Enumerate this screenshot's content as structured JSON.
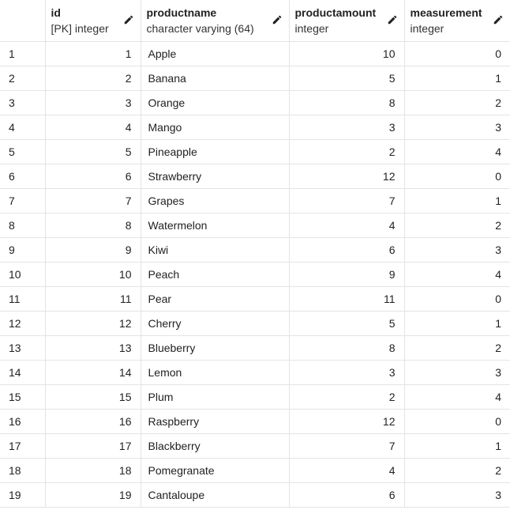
{
  "columns": [
    {
      "name": "id",
      "type": "[PK] integer",
      "icon": "pencil-icon"
    },
    {
      "name": "productname",
      "type": "character varying (64)",
      "icon": "pencil-icon"
    },
    {
      "name": "productamount",
      "type": "integer",
      "icon": "pencil-icon"
    },
    {
      "name": "measurement",
      "type": "integer",
      "icon": "pencil-icon"
    }
  ],
  "rows": [
    {
      "rownum": "1",
      "id": "1",
      "productname": "Apple",
      "productamount": "10",
      "measurement": "0"
    },
    {
      "rownum": "2",
      "id": "2",
      "productname": "Banana",
      "productamount": "5",
      "measurement": "1"
    },
    {
      "rownum": "3",
      "id": "3",
      "productname": "Orange",
      "productamount": "8",
      "measurement": "2"
    },
    {
      "rownum": "4",
      "id": "4",
      "productname": "Mango",
      "productamount": "3",
      "measurement": "3"
    },
    {
      "rownum": "5",
      "id": "5",
      "productname": "Pineapple",
      "productamount": "2",
      "measurement": "4"
    },
    {
      "rownum": "6",
      "id": "6",
      "productname": "Strawberry",
      "productamount": "12",
      "measurement": "0"
    },
    {
      "rownum": "7",
      "id": "7",
      "productname": "Grapes",
      "productamount": "7",
      "measurement": "1"
    },
    {
      "rownum": "8",
      "id": "8",
      "productname": "Watermelon",
      "productamount": "4",
      "measurement": "2"
    },
    {
      "rownum": "9",
      "id": "9",
      "productname": "Kiwi",
      "productamount": "6",
      "measurement": "3"
    },
    {
      "rownum": "10",
      "id": "10",
      "productname": "Peach",
      "productamount": "9",
      "measurement": "4"
    },
    {
      "rownum": "11",
      "id": "11",
      "productname": "Pear",
      "productamount": "11",
      "measurement": "0"
    },
    {
      "rownum": "12",
      "id": "12",
      "productname": "Cherry",
      "productamount": "5",
      "measurement": "1"
    },
    {
      "rownum": "13",
      "id": "13",
      "productname": "Blueberry",
      "productamount": "8",
      "measurement": "2"
    },
    {
      "rownum": "14",
      "id": "14",
      "productname": "Lemon",
      "productamount": "3",
      "measurement": "3"
    },
    {
      "rownum": "15",
      "id": "15",
      "productname": "Plum",
      "productamount": "2",
      "measurement": "4"
    },
    {
      "rownum": "16",
      "id": "16",
      "productname": "Raspberry",
      "productamount": "12",
      "measurement": "0"
    },
    {
      "rownum": "17",
      "id": "17",
      "productname": "Blackberry",
      "productamount": "7",
      "measurement": "1"
    },
    {
      "rownum": "18",
      "id": "18",
      "productname": "Pomegranate",
      "productamount": "4",
      "measurement": "2"
    },
    {
      "rownum": "19",
      "id": "19",
      "productname": "Cantaloupe",
      "productamount": "6",
      "measurement": "3"
    }
  ]
}
